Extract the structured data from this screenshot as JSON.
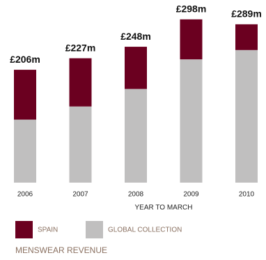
{
  "chart_data": {
    "type": "stacked-bar",
    "categories": [
      "2006",
      "2007",
      "2008",
      "2009",
      "2010"
    ],
    "series": [
      {
        "name": "GLOBAL COLLECTION",
        "color": "#c0bfbf",
        "values": [
          115,
          139,
          171,
          225,
          242
        ]
      },
      {
        "name": "SPAIN",
        "color": "#6b0020",
        "values": [
          91,
          88,
          77,
          73,
          47
        ]
      }
    ],
    "totals": {
      "values": [
        206,
        227,
        248,
        298,
        289
      ],
      "value_labels": [
        "£206m",
        "£227m",
        "£248m",
        "£298m",
        "£289m"
      ]
    },
    "x_label": "YEAR TO MARCH",
    "title": "MENSWEAR REVENUE"
  }
}
